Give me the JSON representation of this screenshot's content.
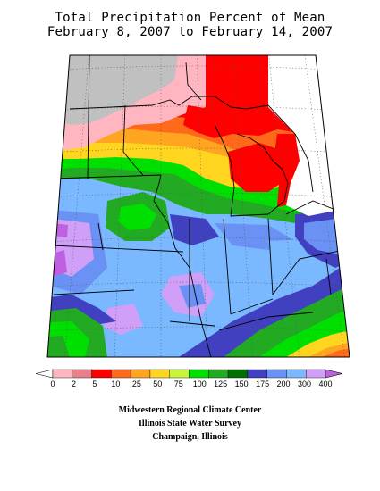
{
  "title_line1": "Total Precipitation Percent of Mean",
  "title_line2": "February 8, 2007 to February 14, 2007",
  "legend": {
    "ticks": [
      "0",
      "2",
      "5",
      "10",
      "25",
      "50",
      "75",
      "100",
      "125",
      "150",
      "175",
      "200",
      "300",
      "400"
    ],
    "colors": [
      "#ffffff",
      "#ffb6c1",
      "#e87f8a",
      "#ff0000",
      "#ff6a1a",
      "#ffa51f",
      "#ffd51f",
      "#c8f53a",
      "#00e000",
      "#22aa22",
      "#007000",
      "#4040c0",
      "#6a92f4",
      "#7ab8ff",
      "#d0a0f8",
      "#c060e0"
    ]
  },
  "credits": {
    "line1": "Midwestern Regional Climate Center",
    "line2": "Illinois State Water Survey",
    "line3": "Champaign, Illinois"
  }
}
